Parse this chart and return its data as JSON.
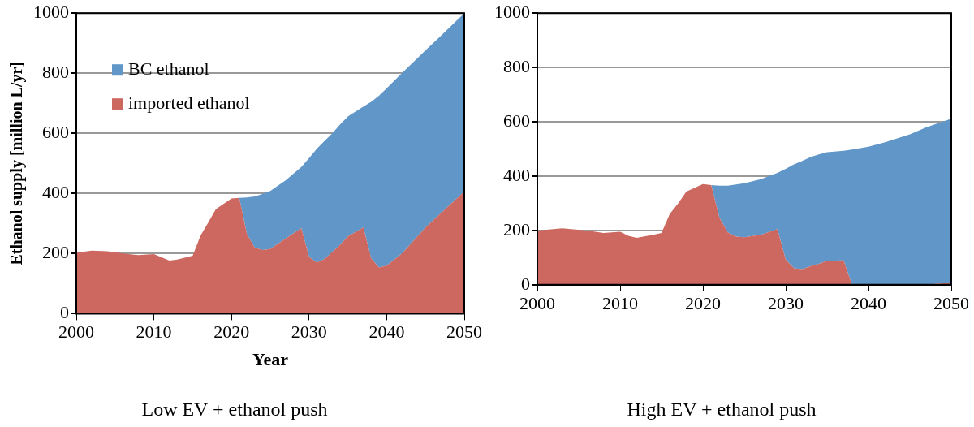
{
  "chart_data": [
    {
      "type": "area",
      "title": "Low EV + ethanol push",
      "xlabel": "Year",
      "ylabel": "Ethanol supply [million L/yr]",
      "stacked": true,
      "x": [
        2000,
        2002,
        2004,
        2006,
        2008,
        2010,
        2012,
        2013,
        2015,
        2016,
        2018,
        2020,
        2021,
        2022,
        2023,
        2024,
        2025,
        2027,
        2029,
        2030,
        2031,
        2032,
        2033,
        2034,
        2035,
        2037,
        2038,
        2039,
        2040,
        2042,
        2045,
        2047,
        2050
      ],
      "series": [
        {
          "name": "imported ethanol",
          "color": "#cc6860",
          "values": [
            203,
            210,
            208,
            200,
            195,
            198,
            177,
            180,
            193,
            259,
            348,
            383,
            385,
            264,
            220,
            212,
            215,
            250,
            285,
            189,
            170,
            182,
            205,
            229,
            257,
            287,
            184,
            154,
            160,
            201,
            287,
            335,
            406
          ]
        },
        {
          "name": "BC ethanol",
          "color": "#6096c8",
          "values": [
            null,
            null,
            null,
            null,
            null,
            null,
            null,
            null,
            null,
            null,
            null,
            null,
            0,
            123,
            170,
            186,
            193,
            194,
            203,
            329,
            379,
            393,
            395,
            401,
            399,
            402,
            521,
            571,
            590,
            600,
            589,
            590,
            594
          ]
        }
      ],
      "xlim": [
        2000,
        2050
      ],
      "xticks": [
        2000,
        2010,
        2020,
        2030,
        2040,
        2050
      ],
      "ylim": [
        0,
        1000
      ],
      "yticks": [
        0,
        200,
        400,
        600,
        800,
        1000
      ],
      "grid": "y",
      "legend": "top left"
    },
    {
      "type": "area",
      "title": "High EV + ethanol push",
      "stacked": true,
      "x": [
        2000,
        2003,
        2006,
        2008,
        2010,
        2011,
        2012,
        2014,
        2015,
        2016,
        2017,
        2018,
        2020,
        2021,
        2022,
        2023,
        2024,
        2025,
        2027,
        2029,
        2030,
        2031,
        2032,
        2033,
        2034,
        2035,
        2037,
        2038,
        2040,
        2042,
        2045,
        2047,
        2050
      ],
      "series": [
        {
          "color": "#cc6860",
          "values": [
            200,
            208,
            200,
            191,
            195,
            180,
            173,
            184,
            191,
            261,
            299,
            343,
            371,
            367,
            247,
            193,
            177,
            175,
            184,
            205,
            93,
            61,
            58,
            68,
            77,
            88,
            90,
            0,
            0,
            0,
            0,
            0,
            8
          ]
        },
        {
          "color": "#6096c8",
          "values": [
            null,
            null,
            null,
            null,
            null,
            null,
            null,
            null,
            null,
            null,
            null,
            null,
            null,
            0,
            118,
            172,
            192,
            199,
            205,
            207,
            334,
            382,
            398,
            402,
            403,
            400,
            403,
            498,
            508,
            525,
            554,
            580,
            603
          ]
        }
      ],
      "xlim": [
        2000,
        2050
      ],
      "xticks": [
        2000,
        2010,
        2020,
        2030,
        2040,
        2050
      ],
      "ylim": [
        0,
        1000
      ],
      "yticks": [
        0,
        200,
        400,
        600,
        800,
        1000
      ],
      "grid": "y",
      "legend": false
    }
  ]
}
